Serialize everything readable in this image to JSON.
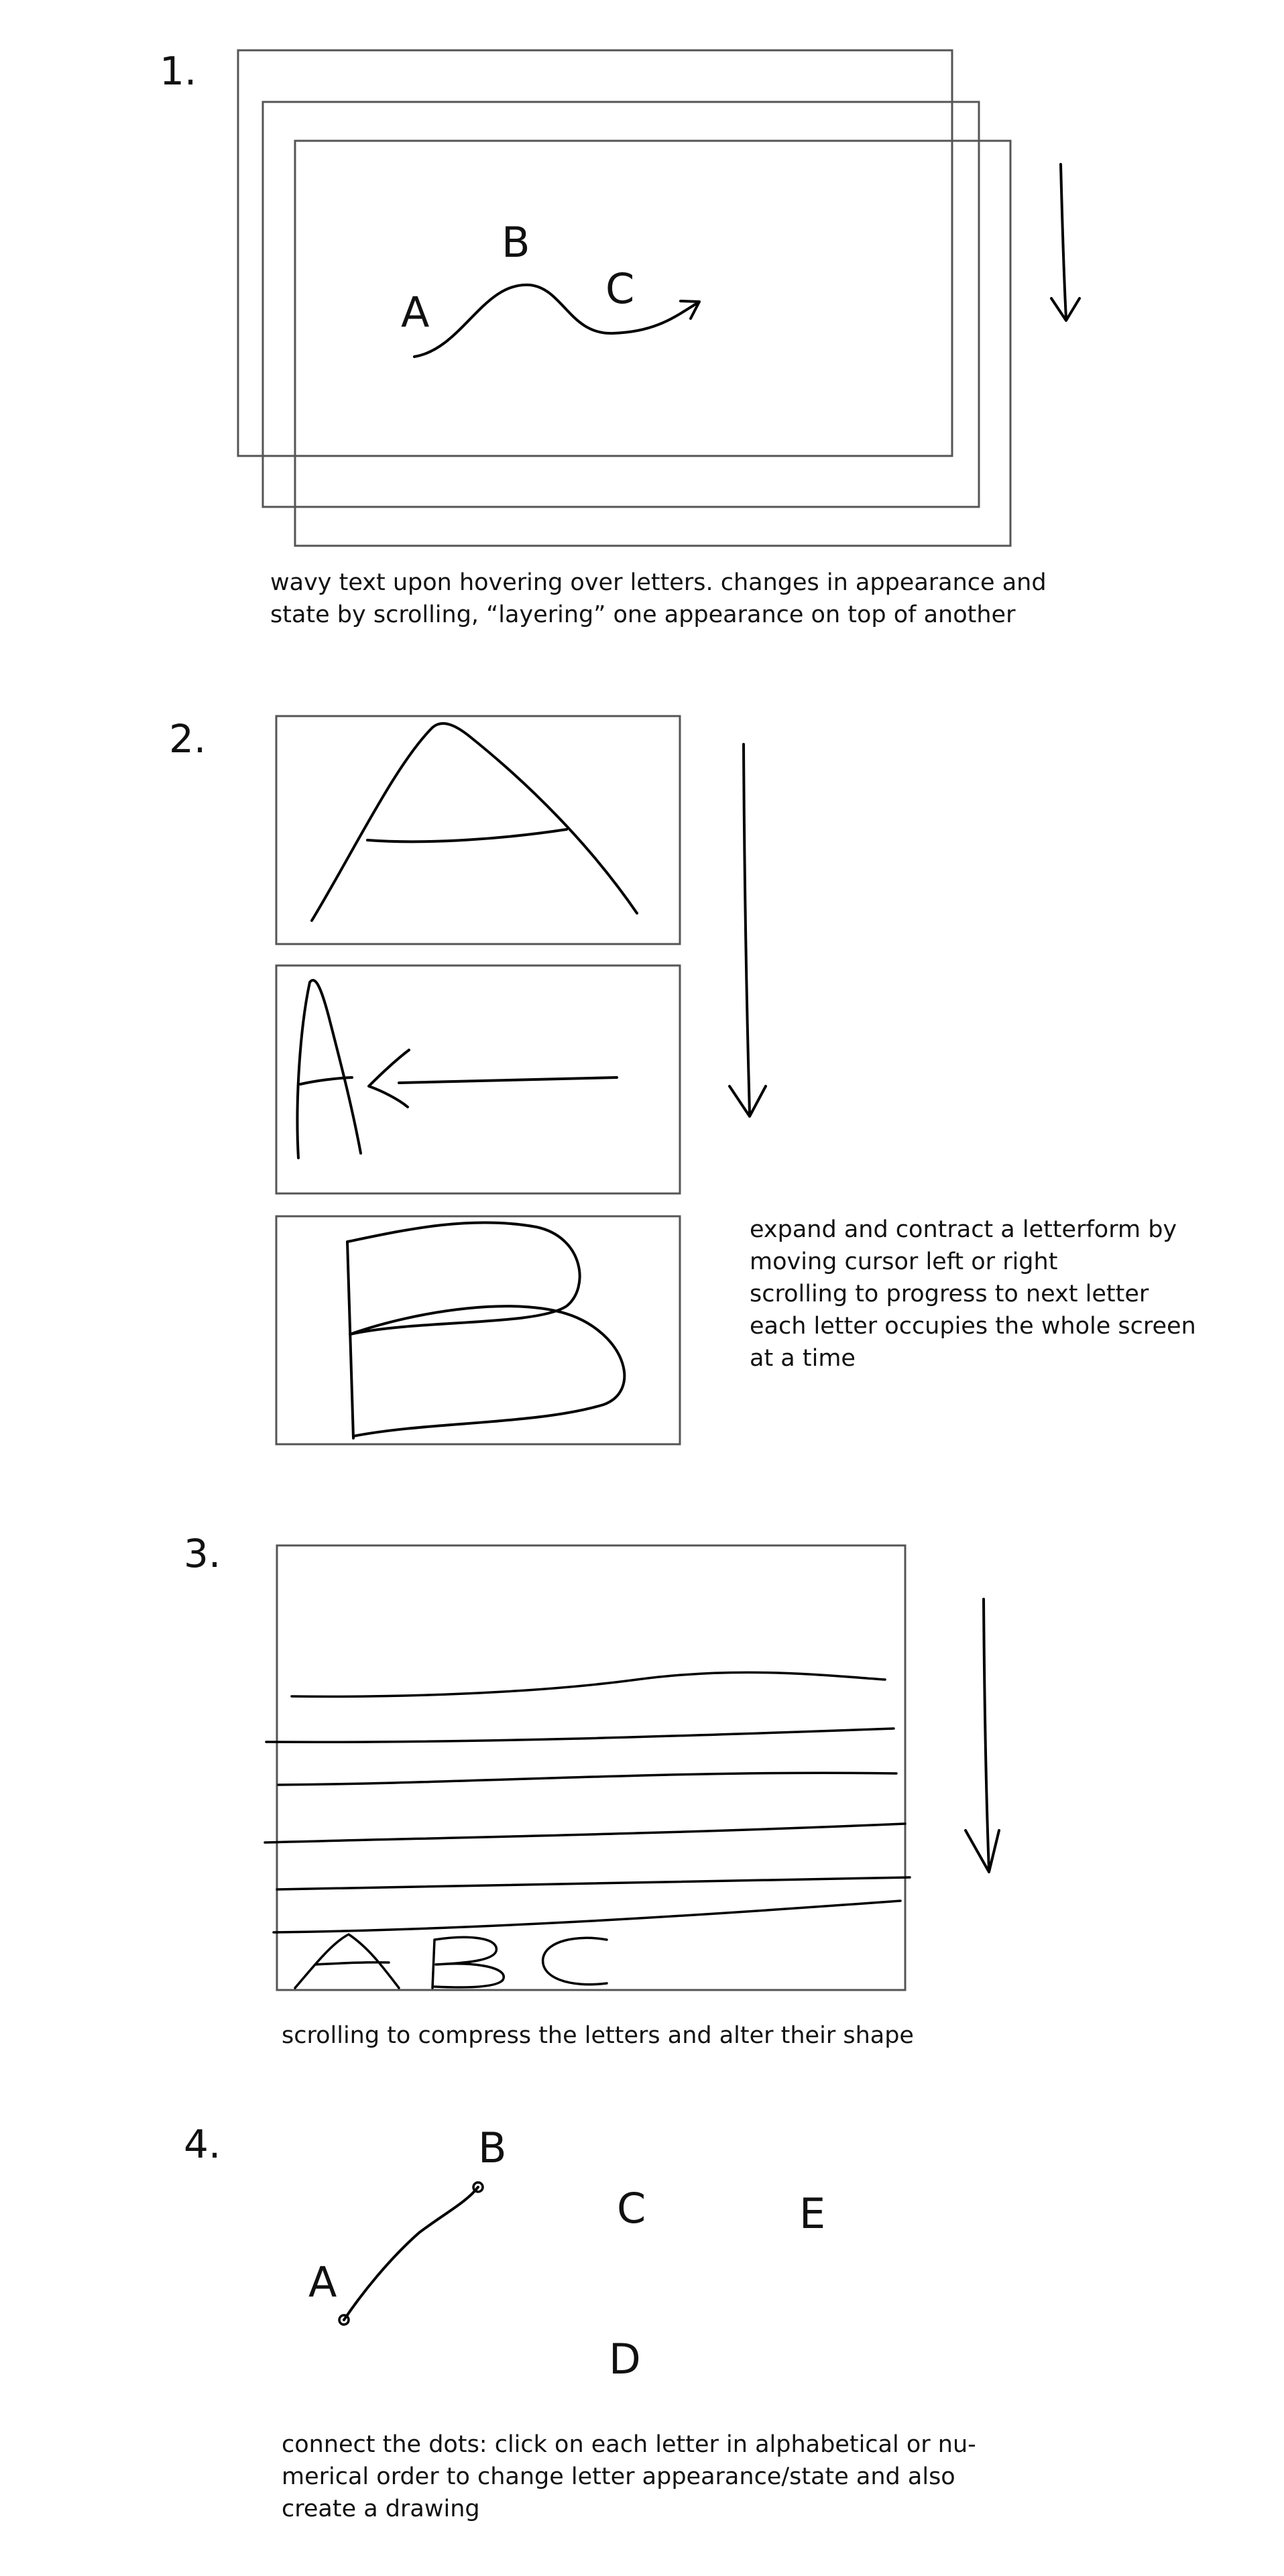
{
  "section1": {
    "number": "1.",
    "letters": [
      "A",
      "B",
      "C"
    ],
    "caption": [
      "wavy text upon hovering over letters. changes in appearance and",
      "state by scrolling, “layering” one appearance on top of another"
    ]
  },
  "section2": {
    "number": "2.",
    "caption": [
      "expand and contract a letterform by",
      "moving cursor left or right",
      "scrolling to progress to next letter",
      "each letter occupies the whole screen",
      "at a time"
    ]
  },
  "section3": {
    "number": "3.",
    "caption": [
      "scrolling to compress the letters and alter their shape"
    ]
  },
  "section4": {
    "number": "4.",
    "letters": [
      "A",
      "B",
      "C",
      "D",
      "E"
    ],
    "caption": [
      "connect the dots: click on each letter in alphabetical or nu-",
      "merical order to change letter appearance/state and also",
      "create a drawing"
    ]
  }
}
